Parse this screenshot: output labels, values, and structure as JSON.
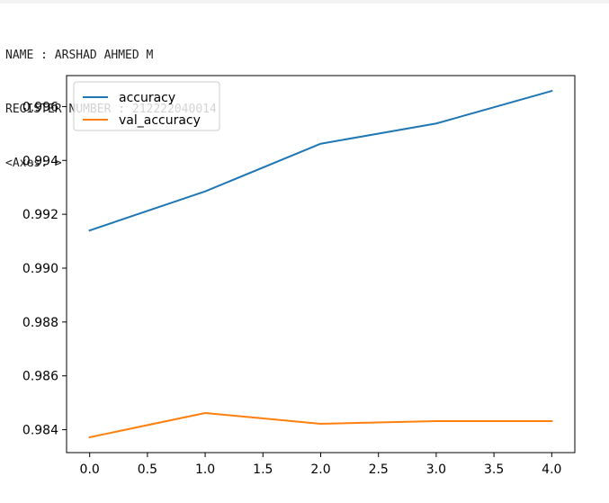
{
  "output": {
    "lines": [
      "NAME : ARSHAD AHMED M",
      "REGISTER NUMBER : 212222040014",
      "<Axes: >"
    ]
  },
  "chart_data": {
    "type": "line",
    "x": [
      0.0,
      1.0,
      2.0,
      3.0,
      4.0
    ],
    "series": [
      {
        "name": "accuracy",
        "color": "#1f77b4",
        "values": [
          0.9914,
          0.99285,
          0.99462,
          0.99537,
          0.99658
        ]
      },
      {
        "name": "val_accuracy",
        "color": "#ff7f0e",
        "values": [
          0.98372,
          0.98462,
          0.98422,
          0.98432,
          0.98432
        ]
      }
    ],
    "xlim": [
      -0.2,
      4.2
    ],
    "ylim": [
      0.98315,
      0.99715
    ],
    "xticks": [
      0.0,
      0.5,
      1.0,
      1.5,
      2.0,
      2.5,
      3.0,
      3.5,
      4.0
    ],
    "xtick_labels": [
      "0.0",
      "0.5",
      "1.0",
      "1.5",
      "2.0",
      "2.5",
      "3.0",
      "3.5",
      "4.0"
    ],
    "yticks": [
      0.984,
      0.986,
      0.988,
      0.99,
      0.992,
      0.994,
      0.996
    ],
    "ytick_labels": [
      "0.984",
      "0.986",
      "0.988",
      "0.990",
      "0.992",
      "0.994",
      "0.996"
    ],
    "title": "",
    "xlabel": "",
    "ylabel": "",
    "grid": false,
    "legend": "upper left"
  }
}
